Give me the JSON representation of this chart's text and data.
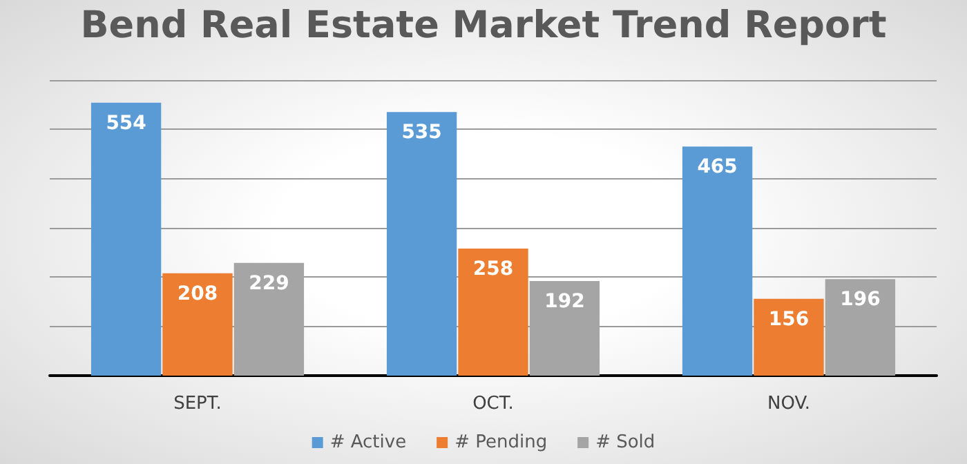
{
  "chart_data": {
    "type": "bar",
    "title": "Bend Real Estate Market Trend Report",
    "categories": [
      "SEPT.",
      "OCT.",
      "NOV."
    ],
    "series": [
      {
        "name": "# Active",
        "color": "#5b9bd5",
        "values": [
          554,
          535,
          465
        ]
      },
      {
        "name": "# Pending",
        "color": "#ed7d31",
        "values": [
          208,
          258,
          156
        ]
      },
      {
        "name": "# Sold",
        "color": "#a5a5a5",
        "values": [
          229,
          192,
          196
        ]
      }
    ],
    "ylim": [
      0,
      600
    ],
    "yticks": [
      {
        "value": 0,
        "label": null
      },
      {
        "value": 100,
        "label": null
      },
      {
        "value": 200,
        "label": null
      },
      {
        "value": 300,
        "label": null
      },
      {
        "value": 400,
        "label": null
      },
      {
        "value": 500,
        "label": null
      },
      {
        "value": 600,
        "label": null
      }
    ],
    "grid": "y",
    "legend": "bottom",
    "data_labels": true,
    "tick_labels": "x"
  }
}
